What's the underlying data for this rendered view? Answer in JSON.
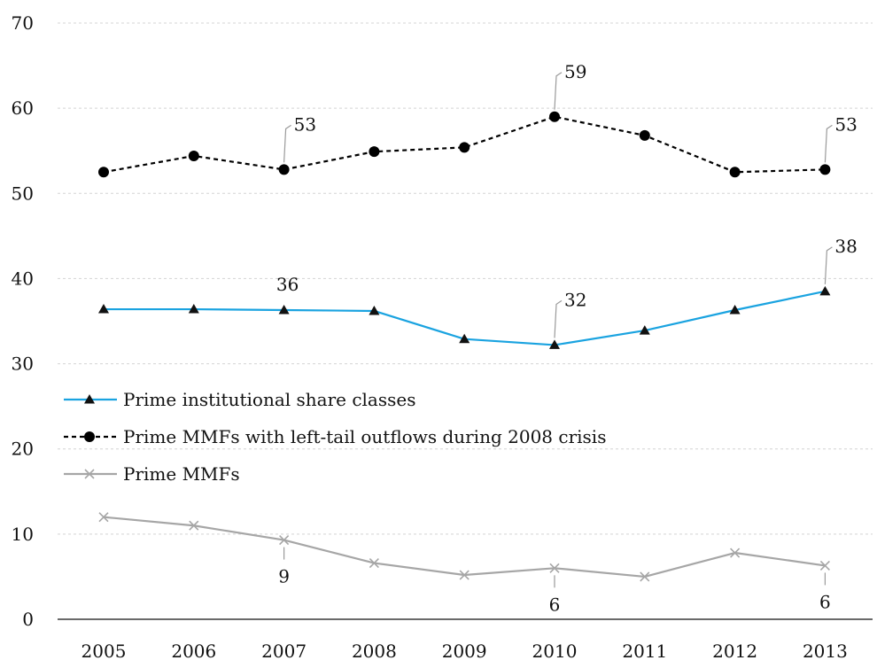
{
  "chart_data": {
    "type": "line",
    "title": "",
    "xlabel": "",
    "ylabel": "",
    "categories": [
      "2005",
      "2006",
      "2007",
      "2008",
      "2009",
      "2010",
      "2011",
      "2012",
      "2013"
    ],
    "ylim": [
      0,
      70
    ],
    "yticks": [
      "0",
      "10",
      "20",
      "30",
      "40",
      "50",
      "60",
      "70"
    ],
    "grid": true,
    "legend_position": "center-left",
    "series": [
      {
        "key": "inst",
        "name": "Prime institutional share classes",
        "color": "#1aa3e0",
        "marker": "triangle",
        "line_style": "solid",
        "values": [
          36.4,
          36.4,
          36.3,
          36.2,
          32.9,
          32.2,
          33.9,
          36.3,
          38.5
        ]
      },
      {
        "key": "lefttail",
        "name": "Prime MMFs with left-tail outflows during 2008 crisis",
        "color": "#000000",
        "marker": "circle",
        "line_style": "dashed",
        "values": [
          52.5,
          54.4,
          52.8,
          54.9,
          55.4,
          59.0,
          56.8,
          52.5,
          52.8
        ]
      },
      {
        "key": "prime",
        "name": "Prime MMFs",
        "color": "#a6a6a6",
        "marker": "x",
        "line_style": "solid",
        "values": [
          12.0,
          11.0,
          9.3,
          6.6,
          5.2,
          6.0,
          5.0,
          7.8,
          6.3
        ]
      }
    ],
    "annotations": [
      {
        "series": "lefttail",
        "index": 2,
        "text": "53",
        "style": "leader-up"
      },
      {
        "series": "lefttail",
        "index": 5,
        "text": "59",
        "style": "leader-up"
      },
      {
        "series": "lefttail",
        "index": 8,
        "text": "53",
        "style": "leader-up"
      },
      {
        "series": "inst",
        "index": 2,
        "text": "36",
        "style": "plain-above"
      },
      {
        "series": "inst",
        "index": 5,
        "text": "32",
        "style": "leader-up"
      },
      {
        "series": "inst",
        "index": 8,
        "text": "38",
        "style": "leader-up"
      },
      {
        "series": "prime",
        "index": 2,
        "text": "9",
        "style": "leader-down"
      },
      {
        "series": "prime",
        "index": 5,
        "text": "6",
        "style": "leader-down"
      },
      {
        "series": "prime",
        "index": 8,
        "text": "6",
        "style": "leader-down"
      }
    ]
  }
}
